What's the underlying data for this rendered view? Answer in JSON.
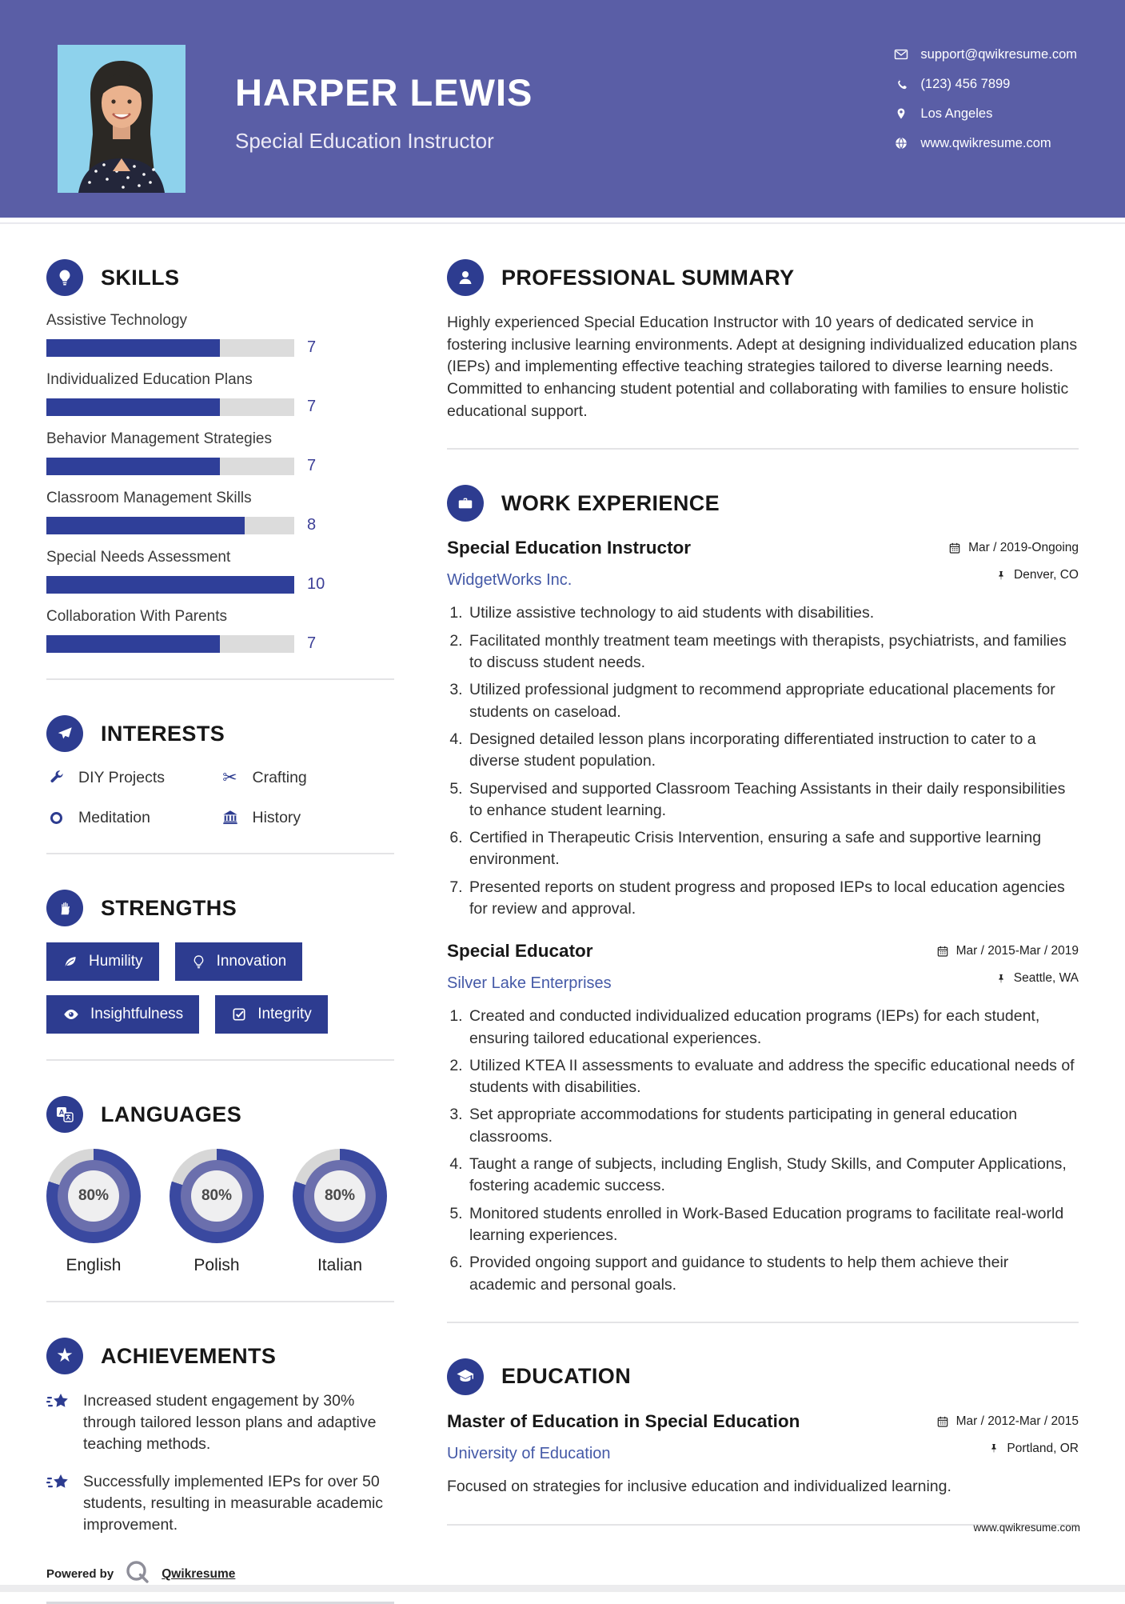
{
  "colors": {
    "header_bg": "#5a5ea6",
    "accent_blue": "#2d3c90",
    "bar_fill": "#2f3f99",
    "bar_track": "#dcdcdc",
    "link_blue": "#4459a7",
    "donut_fill": "#3a49a0",
    "donut_track": "#d7d7d7",
    "donut_mid": "#6b6fad",
    "photo_bg": "#8ed2ec"
  },
  "header": {
    "name": "HARPER LEWIS",
    "title": "Special Education Instructor",
    "contact": [
      {
        "icon": "envelope-icon",
        "text": "support@qwikresume.com"
      },
      {
        "icon": "phone-icon",
        "text": "(123) 456 7899"
      },
      {
        "icon": "location-icon",
        "text": "Los Angeles"
      },
      {
        "icon": "globe-icon",
        "text": "www.qwikresume.com"
      }
    ]
  },
  "skills": {
    "heading": "SKILLS",
    "items": [
      {
        "label": "Assistive Technology",
        "level": 7
      },
      {
        "label": "Individualized Education Plans",
        "level": 7
      },
      {
        "label": "Behavior Management Strategies",
        "level": 7
      },
      {
        "label": "Classroom Management Skills",
        "level": 8
      },
      {
        "label": "Special Needs Assessment",
        "level": 10
      },
      {
        "label": "Collaboration With Parents",
        "level": 7
      }
    ]
  },
  "interests": {
    "heading": "INTERESTS",
    "items": [
      {
        "icon": "wrench-icon",
        "label": "DIY Projects"
      },
      {
        "icon": "scissors-icon",
        "label": "Crafting"
      },
      {
        "icon": "circle-icon",
        "label": "Meditation"
      },
      {
        "icon": "museum-icon",
        "label": "History"
      }
    ]
  },
  "strengths": {
    "heading": "STRENGTHS",
    "items": [
      {
        "icon": "leaf-icon",
        "label": "Humility"
      },
      {
        "icon": "bulb-icon",
        "label": "Innovation"
      },
      {
        "icon": "eye-icon",
        "label": "Insightfulness"
      },
      {
        "icon": "checkbox-icon",
        "label": "Integrity"
      }
    ]
  },
  "languages": {
    "heading": "LANGUAGES",
    "items": [
      {
        "label": "English",
        "percent": 80,
        "display": "80%"
      },
      {
        "label": "Polish",
        "percent": 80,
        "display": "80%"
      },
      {
        "label": "Italian",
        "percent": 80,
        "display": "80%"
      }
    ]
  },
  "achievements": {
    "heading": "ACHIEVEMENTS",
    "items": [
      "Increased student engagement by 30% through tailored lesson plans and adaptive teaching methods.",
      "Successfully implemented IEPs for over 50 students, resulting in measurable academic improvement."
    ]
  },
  "summary": {
    "heading": "PROFESSIONAL SUMMARY",
    "text": "Highly experienced Special Education Instructor with 10 years of dedicated service in fostering inclusive learning environments. Adept at designing individualized education plans (IEPs) and implementing effective teaching strategies tailored to diverse learning needs. Committed to enhancing student potential and collaborating with families to ensure holistic educational support."
  },
  "experience": {
    "heading": "WORK EXPERIENCE",
    "jobs": [
      {
        "title": "Special Education Instructor",
        "company": "WidgetWorks Inc.",
        "dates": "Mar / 2019-Ongoing",
        "location": "Denver, CO",
        "bullets": [
          "Utilize assistive technology to aid students with disabilities.",
          "Facilitated monthly treatment team meetings with therapists, psychiatrists, and families to discuss student needs.",
          "Utilized professional judgment to recommend appropriate educational placements for students on caseload.",
          "Designed detailed lesson plans incorporating differentiated instruction to cater to a diverse student population.",
          "Supervised and supported Classroom Teaching Assistants in their daily responsibilities to enhance student learning.",
          "Certified in Therapeutic Crisis Intervention, ensuring a safe and supportive learning environment.",
          "Presented reports on student progress and proposed IEPs to local education agencies for review and approval."
        ]
      },
      {
        "title": "Special Educator",
        "company": "Silver Lake Enterprises",
        "dates": "Mar / 2015-Mar / 2019",
        "location": "Seattle, WA",
        "bullets": [
          "Created and conducted individualized education programs (IEPs) for each student, ensuring tailored educational experiences.",
          "Utilized KTEA II assessments to evaluate and address the specific educational needs of students with disabilities.",
          "Set appropriate accommodations for students participating in general education classrooms.",
          "Taught a range of subjects, including English, Study Skills, and Computer Applications, fostering academic success.",
          "Monitored students enrolled in Work-Based Education programs to facilitate real-world learning experiences.",
          "Provided ongoing support and guidance to students to help them achieve their academic and personal goals."
        ]
      }
    ]
  },
  "education": {
    "heading": "EDUCATION",
    "degree": "Master of Education in Special Education",
    "school": "University of Education",
    "dates": "Mar / 2012-Mar / 2015",
    "location": "Portland, OR",
    "description": "Focused on strategies for inclusive education and individualized learning."
  },
  "footer": {
    "powered_by": "Powered by",
    "brand": "Qwikresume",
    "site": "www.qwikresume.com"
  }
}
